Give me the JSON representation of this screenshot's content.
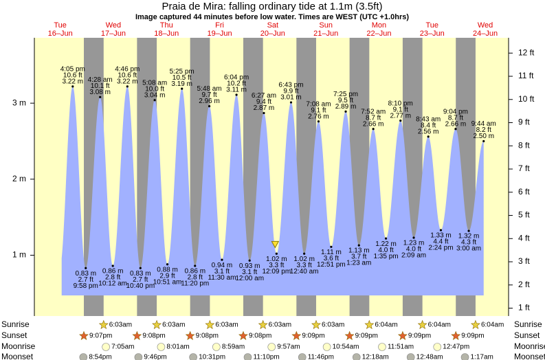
{
  "chart_data": {
    "type": "tide",
    "title": "Praia de Mira: falling  ordinary tide at 1.1m (3.5ft)",
    "subtitle": "Image captured 44 minutes before low water. Times are WEST (UTC +1.0hrs)",
    "ylim": [
      0.2,
      3.86
    ],
    "yticks": [
      {
        "value": 1,
        "label": "1 m"
      },
      {
        "value": 2,
        "label": "2 m"
      },
      {
        "value": 3,
        "label": "3 m"
      }
    ],
    "y2lim": [
      0.66,
      12.66
    ],
    "y2ticks": [
      {
        "value": 1,
        "label": "1 ft"
      },
      {
        "value": 2,
        "label": "2 ft"
      },
      {
        "value": 3,
        "label": "3 ft"
      },
      {
        "value": 4,
        "label": "4 ft"
      },
      {
        "value": 5,
        "label": "5 ft"
      },
      {
        "value": 6,
        "label": "6 ft"
      },
      {
        "value": 7,
        "label": "7 ft"
      },
      {
        "value": 8,
        "label": "8 ft"
      },
      {
        "value": 9,
        "label": "9 ft"
      },
      {
        "value": 10,
        "label": "10 ft"
      },
      {
        "value": 11,
        "label": "11 ft"
      },
      {
        "value": 12,
        "label": "12 ft"
      }
    ],
    "row_labels": {
      "sunrise": "Sunrise",
      "sunset": "Sunset",
      "moonrise": "Moonrise",
      "moonset": "Moonset"
    },
    "current": {
      "height": 1.1
    },
    "days": [
      {
        "name": "Tue",
        "date": "16–Jun",
        "sunset": "9:07pm",
        "moonset": "8:54pm",
        "tides": [
          {
            "time": "4:05 pm",
            "feet": "10.6 ft",
            "height": 3.22,
            "height_label": "3.22 m"
          },
          {
            "time": "9:58 pm",
            "feet": "2.7 ft",
            "height": 0.83,
            "height_label": "0.83 m"
          }
        ]
      },
      {
        "name": "Wed",
        "date": "17–Jun",
        "sunrise": "6:03am",
        "sunset": "9:08pm",
        "moonrise": "7:05am",
        "moonset": "9:46pm",
        "tides": [
          {
            "time": "4:28 am",
            "feet": "10.1 ft",
            "height": 3.08,
            "height_label": "3.08 m"
          },
          {
            "time": "10:12 am",
            "feet": "2.8 ft",
            "height": 0.86,
            "height_label": "0.86 m"
          },
          {
            "time": "4:46 pm",
            "feet": "10.6 ft",
            "height": 3.22,
            "height_label": "3.22 m"
          },
          {
            "time": "10:40 pm",
            "feet": "2.7 ft",
            "height": 0.83,
            "height_label": "0.83 m"
          }
        ]
      },
      {
        "name": "Thu",
        "date": "18–Jun",
        "sunrise": "6:03am",
        "sunset": "9:08pm",
        "moonrise": "8:01am",
        "moonset": "10:31pm",
        "tides": [
          {
            "time": "5:08 am",
            "feet": "10.0 ft",
            "height": 3.04,
            "height_label": "3.04 m"
          },
          {
            "time": "10:51 am",
            "feet": "2.9 ft",
            "height": 0.88,
            "height_label": "0.88 m"
          },
          {
            "time": "5:25 pm",
            "feet": "10.5 ft",
            "height": 3.19,
            "height_label": "3.19 m"
          },
          {
            "time": "11:20 pm",
            "feet": "2.8 ft",
            "height": 0.86,
            "height_label": "0.86 m"
          }
        ]
      },
      {
        "name": "Fri",
        "date": "19–Jun",
        "sunrise": "6:03am",
        "sunset": "9:08pm",
        "moonrise": "8:59am",
        "moonset": "11:10pm",
        "tides": [
          {
            "time": "5:48 am",
            "feet": "9.7 ft",
            "height": 2.96,
            "height_label": "2.96 m"
          },
          {
            "time": "11:30 am",
            "feet": "3.1 ft",
            "height": 0.94,
            "height_label": "0.94 m"
          },
          {
            "time": "6:04 pm",
            "feet": "10.2 ft",
            "height": 3.11,
            "height_label": "3.11 m"
          }
        ]
      },
      {
        "name": "Sat",
        "date": "20–Jun",
        "sunrise": "6:03am",
        "sunset": "9:09pm",
        "moonrise": "9:57am",
        "moonset": "11:46pm",
        "tides": [
          {
            "time": "12:00 am",
            "feet": "3.1 ft",
            "height": 0.93,
            "height_label": "0.93 m"
          },
          {
            "time": "6:27 am",
            "feet": "9.4 ft",
            "height": 2.87,
            "height_label": "2.87 m"
          },
          {
            "time": "12:09 pm",
            "feet": "3.3 ft",
            "height": 1.02,
            "height_label": "1.02 m"
          },
          {
            "time": "6:43 pm",
            "feet": "9.9 ft",
            "height": 3.01,
            "height_label": "3.01 m"
          }
        ]
      },
      {
        "name": "Sun",
        "date": "21–Jun",
        "sunrise": "6:03am",
        "sunset": "9:09pm",
        "moonrise": "10:54am",
        "tides": [
          {
            "time": "12:40 am",
            "feet": "3.3 ft",
            "height": 1.02,
            "height_label": "1.02 m"
          },
          {
            "time": "7:08 am",
            "feet": "9.1 ft",
            "height": 2.76,
            "height_label": "2.76 m"
          },
          {
            "time": "12:51 pm",
            "feet": "3.6 ft",
            "height": 1.11,
            "height_label": "1.11 m"
          },
          {
            "time": "7:25 pm",
            "feet": "9.5 ft",
            "height": 2.89,
            "height_label": "2.89 m"
          }
        ]
      },
      {
        "name": "Mon",
        "date": "22–Jun",
        "sunrise": "6:04am",
        "sunset": "9:09pm",
        "moonrise": "11:51am",
        "moonset": "12:18am",
        "tides": [
          {
            "time": "1:23 am",
            "feet": "3.7 ft",
            "height": 1.13,
            "height_label": "1.13 m"
          },
          {
            "time": "7:52 am",
            "feet": "8.7 ft",
            "height": 2.66,
            "height_label": "2.66 m"
          },
          {
            "time": "1:35 pm",
            "feet": "4.0 ft",
            "height": 1.22,
            "height_label": "1.22 m"
          },
          {
            "time": "8:10 pm",
            "feet": "9.1 ft",
            "height": 2.77,
            "height_label": "2.77 m"
          }
        ]
      },
      {
        "name": "Tue",
        "date": "23–Jun",
        "sunrise": "6:04am",
        "sunset": "9:09pm",
        "moonrise": "12:47pm",
        "moonset": "12:48am",
        "tides": [
          {
            "time": "2:09 am",
            "feet": "4.0 ft",
            "height": 1.23,
            "height_label": "1.23 m"
          },
          {
            "time": "8:43 am",
            "feet": "8.4 ft",
            "height": 2.56,
            "height_label": "2.56 m"
          },
          {
            "time": "2:24 pm",
            "feet": "4.4 ft",
            "height": 1.33,
            "height_label": "1.33 m"
          },
          {
            "time": "9:04 pm",
            "feet": "8.7 ft",
            "height": 2.66,
            "height_label": "2.66 m"
          }
        ]
      },
      {
        "name": "Wed",
        "date": "24–Jun",
        "sunrise": "6:04am",
        "moonset": "1:17am",
        "tides": [
          {
            "time": "3:00 am",
            "feet": "4.3 ft",
            "height": 1.32,
            "height_label": "1.32 m"
          },
          {
            "time": "9:44 am",
            "feet": "8.2 ft",
            "height": 2.5,
            "height_label": "2.50 m"
          }
        ]
      }
    ]
  }
}
